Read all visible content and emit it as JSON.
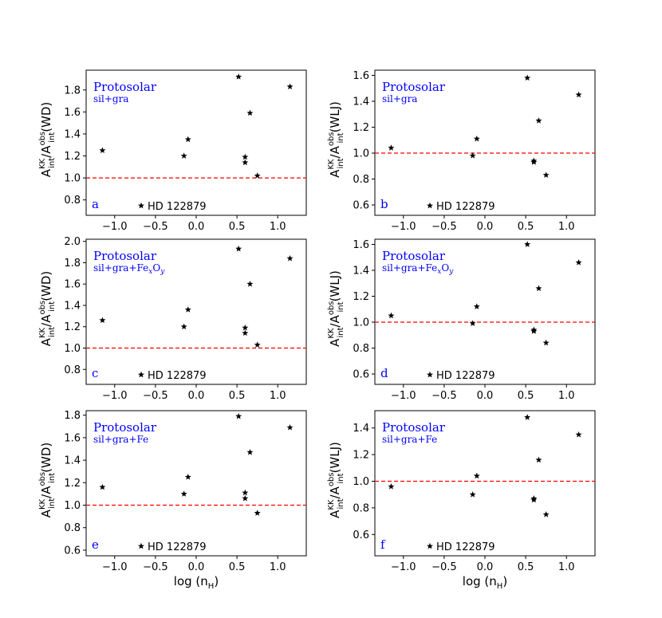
{
  "chart_data": [
    {
      "type": "scatter",
      "panel_label": "a",
      "title": "Protosolar",
      "subtitle": "sil+gra",
      "ylabel": {
        "main": "A",
        "sup1": "KK",
        "sub1": "int",
        "slash": "/A",
        "sup2": "obs",
        "sub2": "int",
        "suffix": "(WD)"
      },
      "xlabel": "",
      "legend": "HD 122879",
      "xlim": [
        -1.35,
        1.35
      ],
      "ylim": [
        0.66,
        1.98
      ],
      "yticks": [
        0.8,
        1.0,
        1.2,
        1.4,
        1.6,
        1.8
      ],
      "ytick_labels": [
        "0.8",
        "1.0",
        "1.2",
        "1.4",
        "1.6",
        "1.8"
      ],
      "xticks": [
        -1.0,
        -0.5,
        0.0,
        0.5,
        1.0
      ],
      "xtick_labels": [
        "−1.0",
        "−0.5",
        "0.0",
        "0.5",
        "1.0"
      ],
      "hline": 1.0,
      "hline_color": "#ff0000",
      "points": [
        {
          "x": -1.15,
          "y": 1.25
        },
        {
          "x": -0.15,
          "y": 1.2
        },
        {
          "x": -0.1,
          "y": 1.35
        },
        {
          "x": 0.52,
          "y": 1.92
        },
        {
          "x": 0.6,
          "y": 1.19
        },
        {
          "x": 0.6,
          "y": 1.14
        },
        {
          "x": 0.66,
          "y": 1.59
        },
        {
          "x": 0.75,
          "y": 1.02
        },
        {
          "x": 1.15,
          "y": 1.83
        }
      ]
    },
    {
      "type": "scatter",
      "panel_label": "b",
      "title": "Protosolar",
      "subtitle": "sil+gra",
      "ylabel": {
        "main": "A",
        "sup1": "KK",
        "sub1": "int",
        "slash": "/A",
        "sup2": "obs",
        "sub2": "int",
        "suffix": "(WLJ)"
      },
      "xlabel": "",
      "legend": "HD 122879",
      "xlim": [
        -1.35,
        1.35
      ],
      "ylim": [
        0.52,
        1.64
      ],
      "yticks": [
        0.6,
        0.8,
        1.0,
        1.2,
        1.4,
        1.6
      ],
      "ytick_labels": [
        "0.6",
        "0.8",
        "1.0",
        "1.2",
        "1.4",
        "1.6"
      ],
      "xticks": [
        -1.0,
        -0.5,
        0.0,
        0.5,
        1.0
      ],
      "xtick_labels": [
        "−1.0",
        "−0.5",
        "0.0",
        "0.5",
        "1.0"
      ],
      "hline": 1.0,
      "hline_color": "#ff0000",
      "points": [
        {
          "x": -1.15,
          "y": 1.04
        },
        {
          "x": -0.15,
          "y": 0.98
        },
        {
          "x": -0.1,
          "y": 1.11
        },
        {
          "x": 0.52,
          "y": 1.58
        },
        {
          "x": 0.6,
          "y": 0.93
        },
        {
          "x": 0.6,
          "y": 0.94
        },
        {
          "x": 0.66,
          "y": 1.25
        },
        {
          "x": 0.75,
          "y": 0.83
        },
        {
          "x": 1.15,
          "y": 1.45
        }
      ]
    },
    {
      "type": "scatter",
      "panel_label": "c",
      "title": "Protosolar",
      "subtitle": "sil+gra+Fe_xO_y",
      "subtitle_parts": {
        "a": "sil+gra+Fe",
        "b": "x",
        "c": "O",
        "d": "y"
      },
      "ylabel": {
        "main": "A",
        "sup1": "KK",
        "sub1": "int",
        "slash": "/A",
        "sup2": "obs",
        "sub2": "int",
        "suffix": "(WD)"
      },
      "xlabel": "",
      "legend": "HD 122879",
      "xlim": [
        -1.35,
        1.35
      ],
      "ylim": [
        0.66,
        2.02
      ],
      "yticks": [
        0.8,
        1.0,
        1.2,
        1.4,
        1.6,
        1.8,
        2.0
      ],
      "ytick_labels": [
        "0.8",
        "1.0",
        "1.2",
        "1.4",
        "1.6",
        "1.8",
        "2.0"
      ],
      "xticks": [
        -1.0,
        -0.5,
        0.0,
        0.5,
        1.0
      ],
      "xtick_labels": [
        "−1.0",
        "−0.5",
        "0.0",
        "0.5",
        "1.0"
      ],
      "hline": 1.0,
      "hline_color": "#ff0000",
      "points": [
        {
          "x": -1.15,
          "y": 1.26
        },
        {
          "x": -0.15,
          "y": 1.2
        },
        {
          "x": -0.1,
          "y": 1.36
        },
        {
          "x": 0.52,
          "y": 1.93
        },
        {
          "x": 0.6,
          "y": 1.19
        },
        {
          "x": 0.6,
          "y": 1.14
        },
        {
          "x": 0.66,
          "y": 1.6
        },
        {
          "x": 0.75,
          "y": 1.03
        },
        {
          "x": 1.15,
          "y": 1.84
        }
      ]
    },
    {
      "type": "scatter",
      "panel_label": "d",
      "title": "Protosolar",
      "subtitle": "sil+gra+Fe_xO_y",
      "subtitle_parts": {
        "a": "sil+gra+Fe",
        "b": "x",
        "c": "O",
        "d": "y"
      },
      "ylabel": {
        "main": "A",
        "sup1": "KK",
        "sub1": "int",
        "slash": "/A",
        "sup2": "obs",
        "sub2": "int",
        "suffix": "(WLJ)"
      },
      "xlabel": "",
      "legend": "HD 122879",
      "xlim": [
        -1.35,
        1.35
      ],
      "ylim": [
        0.52,
        1.64
      ],
      "yticks": [
        0.6,
        0.8,
        1.0,
        1.2,
        1.4,
        1.6
      ],
      "ytick_labels": [
        "0.6",
        "0.8",
        "1.0",
        "1.2",
        "1.4",
        "1.6"
      ],
      "xticks": [
        -1.0,
        -0.5,
        0.0,
        0.5,
        1.0
      ],
      "xtick_labels": [
        "−1.0",
        "−0.5",
        "0.0",
        "0.5",
        "1.0"
      ],
      "hline": 1.0,
      "hline_color": "#ff0000",
      "points": [
        {
          "x": -1.15,
          "y": 1.05
        },
        {
          "x": -0.15,
          "y": 0.99
        },
        {
          "x": -0.1,
          "y": 1.12
        },
        {
          "x": 0.52,
          "y": 1.6
        },
        {
          "x": 0.6,
          "y": 0.94
        },
        {
          "x": 0.6,
          "y": 0.93
        },
        {
          "x": 0.66,
          "y": 1.26
        },
        {
          "x": 0.75,
          "y": 0.84
        },
        {
          "x": 1.15,
          "y": 1.46
        }
      ]
    },
    {
      "type": "scatter",
      "panel_label": "e",
      "title": "Protosolar",
      "subtitle": "sil+gra+Fe",
      "ylabel": {
        "main": "A",
        "sup1": "KK",
        "sub1": "int",
        "slash": "/A",
        "sup2": "obs",
        "sub2": "int",
        "suffix": "(WD)"
      },
      "xlabel": "log (n_H)",
      "xlabel_parts": {
        "a": "log (n",
        "b": "H",
        "c": ")"
      },
      "legend": "HD 122879",
      "xlim": [
        -1.35,
        1.35
      ],
      "ylim": [
        0.55,
        1.84
      ],
      "yticks": [
        0.6,
        0.8,
        1.0,
        1.2,
        1.4,
        1.6,
        1.8
      ],
      "ytick_labels": [
        "0.6",
        "0.8",
        "1.0",
        "1.2",
        "1.4",
        "1.6",
        "1.8"
      ],
      "xticks": [
        -1.0,
        -0.5,
        0.0,
        0.5,
        1.0
      ],
      "xtick_labels": [
        "−1.0",
        "−0.5",
        "0.0",
        "0.5",
        "1.0"
      ],
      "hline": 1.0,
      "hline_color": "#ff0000",
      "points": [
        {
          "x": -1.15,
          "y": 1.16
        },
        {
          "x": -0.15,
          "y": 1.1
        },
        {
          "x": -0.1,
          "y": 1.25
        },
        {
          "x": 0.52,
          "y": 1.79
        },
        {
          "x": 0.6,
          "y": 1.11
        },
        {
          "x": 0.6,
          "y": 1.06
        },
        {
          "x": 0.66,
          "y": 1.47
        },
        {
          "x": 0.75,
          "y": 0.93
        },
        {
          "x": 1.15,
          "y": 1.69
        }
      ]
    },
    {
      "type": "scatter",
      "panel_label": "f",
      "title": "Protosolar",
      "subtitle": "sil+gra+Fe",
      "ylabel": {
        "main": "A",
        "sup1": "KK",
        "sub1": "int",
        "slash": "/A",
        "sup2": "obs",
        "sub2": "int",
        "suffix": "(WLJ)"
      },
      "xlabel": "log (n_H)",
      "xlabel_parts": {
        "a": "log (n",
        "b": "H",
        "c": ")"
      },
      "legend": "HD 122879",
      "xlim": [
        -1.35,
        1.35
      ],
      "ylim": [
        0.44,
        1.53
      ],
      "yticks": [
        0.6,
        0.8,
        1.0,
        1.2,
        1.4
      ],
      "ytick_labels": [
        "0.6",
        "0.8",
        "1.0",
        "1.2",
        "1.4"
      ],
      "xticks": [
        -1.0,
        -0.5,
        0.0,
        0.5,
        1.0
      ],
      "xtick_labels": [
        "−1.0",
        "−0.5",
        "0.0",
        "0.5",
        "1.0"
      ],
      "hline": 1.0,
      "hline_color": "#ff0000",
      "points": [
        {
          "x": -1.15,
          "y": 0.96
        },
        {
          "x": -0.15,
          "y": 0.9
        },
        {
          "x": -0.1,
          "y": 1.04
        },
        {
          "x": 0.52,
          "y": 1.48
        },
        {
          "x": 0.6,
          "y": 0.87
        },
        {
          "x": 0.6,
          "y": 0.86
        },
        {
          "x": 0.66,
          "y": 1.16
        },
        {
          "x": 0.75,
          "y": 0.75
        },
        {
          "x": 1.15,
          "y": 1.35
        }
      ]
    }
  ]
}
